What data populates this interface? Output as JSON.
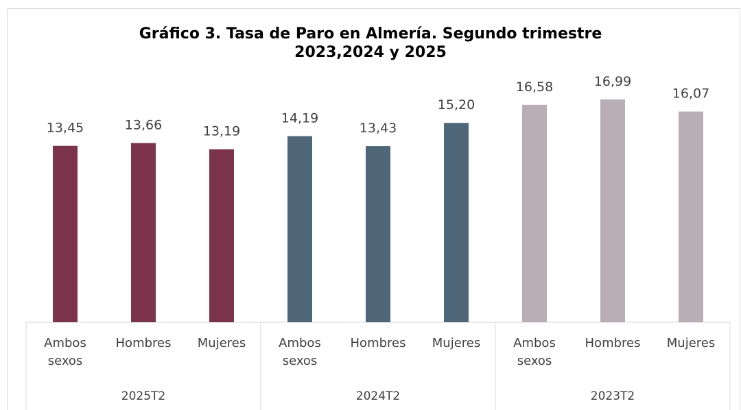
{
  "chart_data": {
    "type": "bar",
    "title": "Gráfico 3. Tasa de Paro en Almería. Segundo trimestre 2023,2024 y 2025",
    "groups": [
      {
        "name": "2025T2",
        "color": "#7b344b",
        "categories": [
          "Ambos sexos",
          "Hombres",
          "Mujeres"
        ],
        "values": [
          13.45,
          13.66,
          13.19
        ],
        "value_labels": [
          "13,45",
          "13,66",
          "13,19"
        ]
      },
      {
        "name": "2024T2",
        "color": "#4f6679",
        "categories": [
          "Ambos sexos",
          "Hombres",
          "Mujeres"
        ],
        "values": [
          14.19,
          13.43,
          15.2
        ],
        "value_labels": [
          "14,19",
          "13,43",
          "15,20"
        ]
      },
      {
        "name": "2023T2",
        "color": "#b9adb6",
        "categories": [
          "Ambos sexos",
          "Hombres",
          "Mujeres"
        ],
        "values": [
          16.58,
          16.99,
          16.07
        ],
        "value_labels": [
          "16,58",
          "16,99",
          "16,07"
        ]
      }
    ]
  }
}
